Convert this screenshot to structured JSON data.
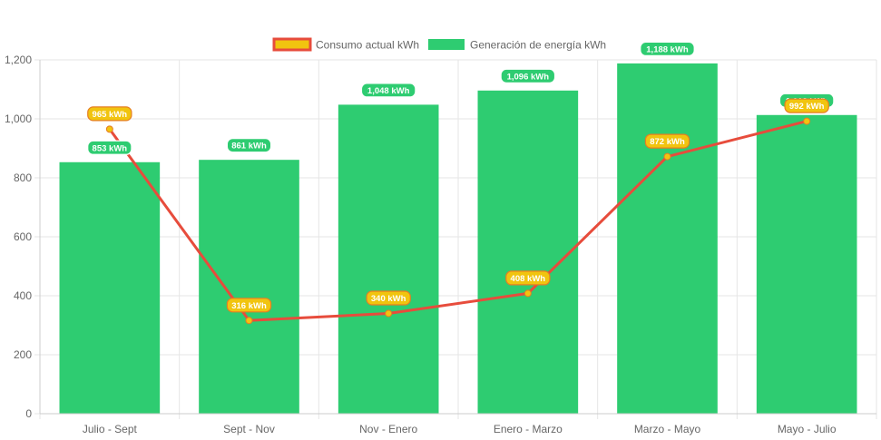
{
  "chart_data": {
    "type": "bar",
    "title": "",
    "xlabel": "",
    "ylabel": "",
    "categories": [
      "Julio - Sept",
      "Sept - Nov",
      "Nov - Enero",
      "Enero - Marzo",
      "Marzo - Mayo",
      "Mayo - Julio"
    ],
    "ylim": [
      0,
      1200
    ],
    "yticks": [
      "0",
      "200",
      "400",
      "600",
      "800",
      "1,000",
      "1,200"
    ],
    "ytick_values": [
      0,
      200,
      400,
      600,
      800,
      1000,
      1200
    ],
    "grid": true,
    "legend_position": "top",
    "series": [
      {
        "name": "Consumo actual kWh",
        "type": "line",
        "values": [
          965,
          316,
          340,
          408,
          872,
          992
        ],
        "labels": [
          "965 kWh",
          "316 kWh",
          "340 kWh",
          "408 kWh",
          "872 kWh",
          "992 kWh"
        ],
        "color": "#e74c3c",
        "point_color": "#f1c40f"
      },
      {
        "name": "Generación de energía kWh",
        "type": "bar",
        "values": [
          853,
          861,
          1048,
          1096,
          1188,
          1013
        ],
        "labels": [
          "853 kWh",
          "861 kWh",
          "1,048 kWh",
          "1,096 kWh",
          "1,188 kWh",
          "1,013 kWh"
        ],
        "color": "#2ecc71"
      }
    ]
  }
}
